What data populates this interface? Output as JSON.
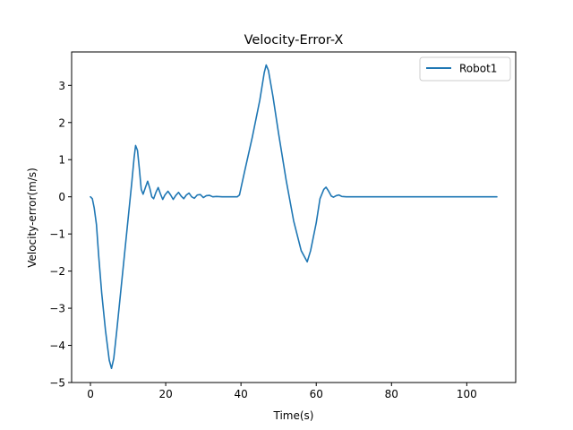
{
  "chart_data": {
    "type": "line",
    "title": "Velocity-Error-X",
    "xlabel": "Time(s)",
    "ylabel": "Velocity-error(m/s)",
    "xlim": [
      -5,
      113
    ],
    "ylim": [
      -5,
      3.9
    ],
    "xticks": [
      0,
      20,
      40,
      60,
      80,
      100
    ],
    "yticks": [
      -5,
      -4,
      -3,
      -2,
      -1,
      0,
      1,
      2,
      3
    ],
    "xtick_labels": [
      "0",
      "20",
      "40",
      "60",
      "80",
      "100"
    ],
    "ytick_labels": [
      "−5",
      "−4",
      "−3",
      "−2",
      "−1",
      "0",
      "1",
      "2",
      "3"
    ],
    "grid": false,
    "legend_position": "top-right",
    "series": [
      {
        "name": "Robot1",
        "color": "#1f77b4",
        "points": [
          [
            0,
            0
          ],
          [
            0.5,
            -0.05
          ],
          [
            1,
            -0.3
          ],
          [
            1.6,
            -0.75
          ],
          [
            2.2,
            -1.6
          ],
          [
            3,
            -2.6
          ],
          [
            4,
            -3.6
          ],
          [
            5,
            -4.4
          ],
          [
            5.6,
            -4.62
          ],
          [
            6.2,
            -4.35
          ],
          [
            7,
            -3.6
          ],
          [
            8,
            -2.6
          ],
          [
            9,
            -1.6
          ],
          [
            10,
            -0.6
          ],
          [
            11,
            0.4
          ],
          [
            11.6,
            1.05
          ],
          [
            12,
            1.38
          ],
          [
            12.5,
            1.25
          ],
          [
            13,
            0.75
          ],
          [
            13.5,
            0.2
          ],
          [
            14,
            0.07
          ],
          [
            14.6,
            0.25
          ],
          [
            15.2,
            0.42
          ],
          [
            15.8,
            0.22
          ],
          [
            16.3,
            0.0
          ],
          [
            16.8,
            -0.05
          ],
          [
            17.4,
            0.12
          ],
          [
            18,
            0.25
          ],
          [
            18.6,
            0.08
          ],
          [
            19.2,
            -0.07
          ],
          [
            19.8,
            0.05
          ],
          [
            20.6,
            0.15
          ],
          [
            21.3,
            0.05
          ],
          [
            22,
            -0.07
          ],
          [
            22.7,
            0.04
          ],
          [
            23.4,
            0.12
          ],
          [
            24.1,
            0.02
          ],
          [
            24.8,
            -0.05
          ],
          [
            25.5,
            0.05
          ],
          [
            26.2,
            0.1
          ],
          [
            26.9,
            0.0
          ],
          [
            27.6,
            -0.04
          ],
          [
            28.4,
            0.05
          ],
          [
            29.2,
            0.06
          ],
          [
            30,
            -0.02
          ],
          [
            30.8,
            0.03
          ],
          [
            31.6,
            0.04
          ],
          [
            32.5,
            0.0
          ],
          [
            33.5,
            0.01
          ],
          [
            35,
            0.0
          ],
          [
            37,
            0.0
          ],
          [
            39,
            0.0
          ],
          [
            39.6,
            0.05
          ],
          [
            41,
            0.7
          ],
          [
            43,
            1.6
          ],
          [
            45,
            2.6
          ],
          [
            46.2,
            3.35
          ],
          [
            46.7,
            3.55
          ],
          [
            47.3,
            3.4
          ],
          [
            48.5,
            2.7
          ],
          [
            50,
            1.7
          ],
          [
            52,
            0.45
          ],
          [
            54,
            -0.65
          ],
          [
            56,
            -1.45
          ],
          [
            57.6,
            -1.75
          ],
          [
            58.5,
            -1.45
          ],
          [
            60,
            -0.7
          ],
          [
            61,
            -0.05
          ],
          [
            62,
            0.2
          ],
          [
            62.6,
            0.26
          ],
          [
            63.3,
            0.15
          ],
          [
            64,
            0.02
          ],
          [
            64.6,
            -0.01
          ],
          [
            65.3,
            0.03
          ],
          [
            66,
            0.05
          ],
          [
            66.8,
            0.01
          ],
          [
            68,
            0.0
          ],
          [
            80,
            0.0
          ],
          [
            95,
            0.0
          ],
          [
            108,
            0.0
          ]
        ]
      }
    ]
  }
}
